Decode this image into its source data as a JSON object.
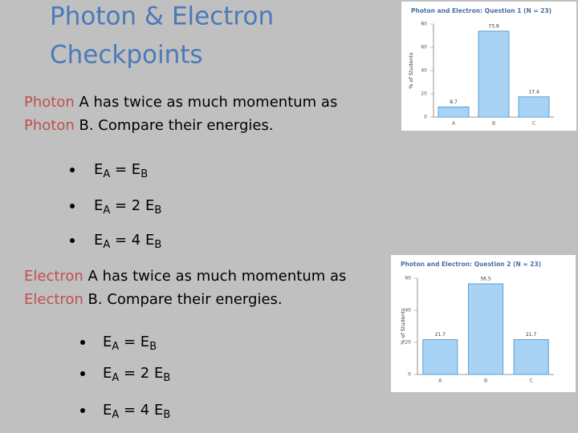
{
  "slide": {
    "title": [
      "Photon & Electron",
      "Checkpoints"
    ],
    "highlight_color": "#c0504d",
    "questions": [
      {
        "lines": [
          [
            "Photon",
            " A has twice as much momentum as"
          ],
          [
            "Photon",
            " B.  Compare their energies."
          ]
        ],
        "options": [
          [
            "E",
            "A",
            " = E",
            "B"
          ],
          [
            "E",
            "A",
            " = 2 E",
            "B"
          ],
          [
            "E",
            "A",
            " = 4 E",
            "B"
          ]
        ]
      },
      {
        "lines": [
          [
            "Electron",
            " A has twice as much momentum as"
          ],
          [
            "Electron",
            " B.  Compare their energies."
          ]
        ],
        "options": [
          [
            "E",
            "A",
            " = E",
            "B"
          ],
          [
            "E",
            "A",
            " = 2 E",
            "B"
          ],
          [
            "E",
            "A",
            " = 4 E",
            "B"
          ]
        ]
      }
    ]
  },
  "chart_data": [
    {
      "type": "bar",
      "title": "Photon and Electron: Question 1 (N = 23)",
      "y_label": "% of Students",
      "categories": [
        "A",
        "B",
        "C"
      ],
      "values": [
        8.7,
        73.9,
        17.4
      ],
      "color": "#a9d3f5",
      "ylim": [
        0,
        80
      ],
      "yticks": [
        0,
        20,
        40,
        60,
        80
      ],
      "grid": false
    },
    {
      "type": "bar",
      "title": "Photon and Electron: Question 2 (N = 23)",
      "y_label": "% of Students",
      "categories": [
        "A",
        "B",
        "C"
      ],
      "values": [
        21.7,
        56.5,
        21.7
      ],
      "color": "#a9d3f5",
      "ylim": [
        0,
        60
      ],
      "yticks": [
        0,
        20,
        40,
        60
      ],
      "grid": false
    }
  ]
}
